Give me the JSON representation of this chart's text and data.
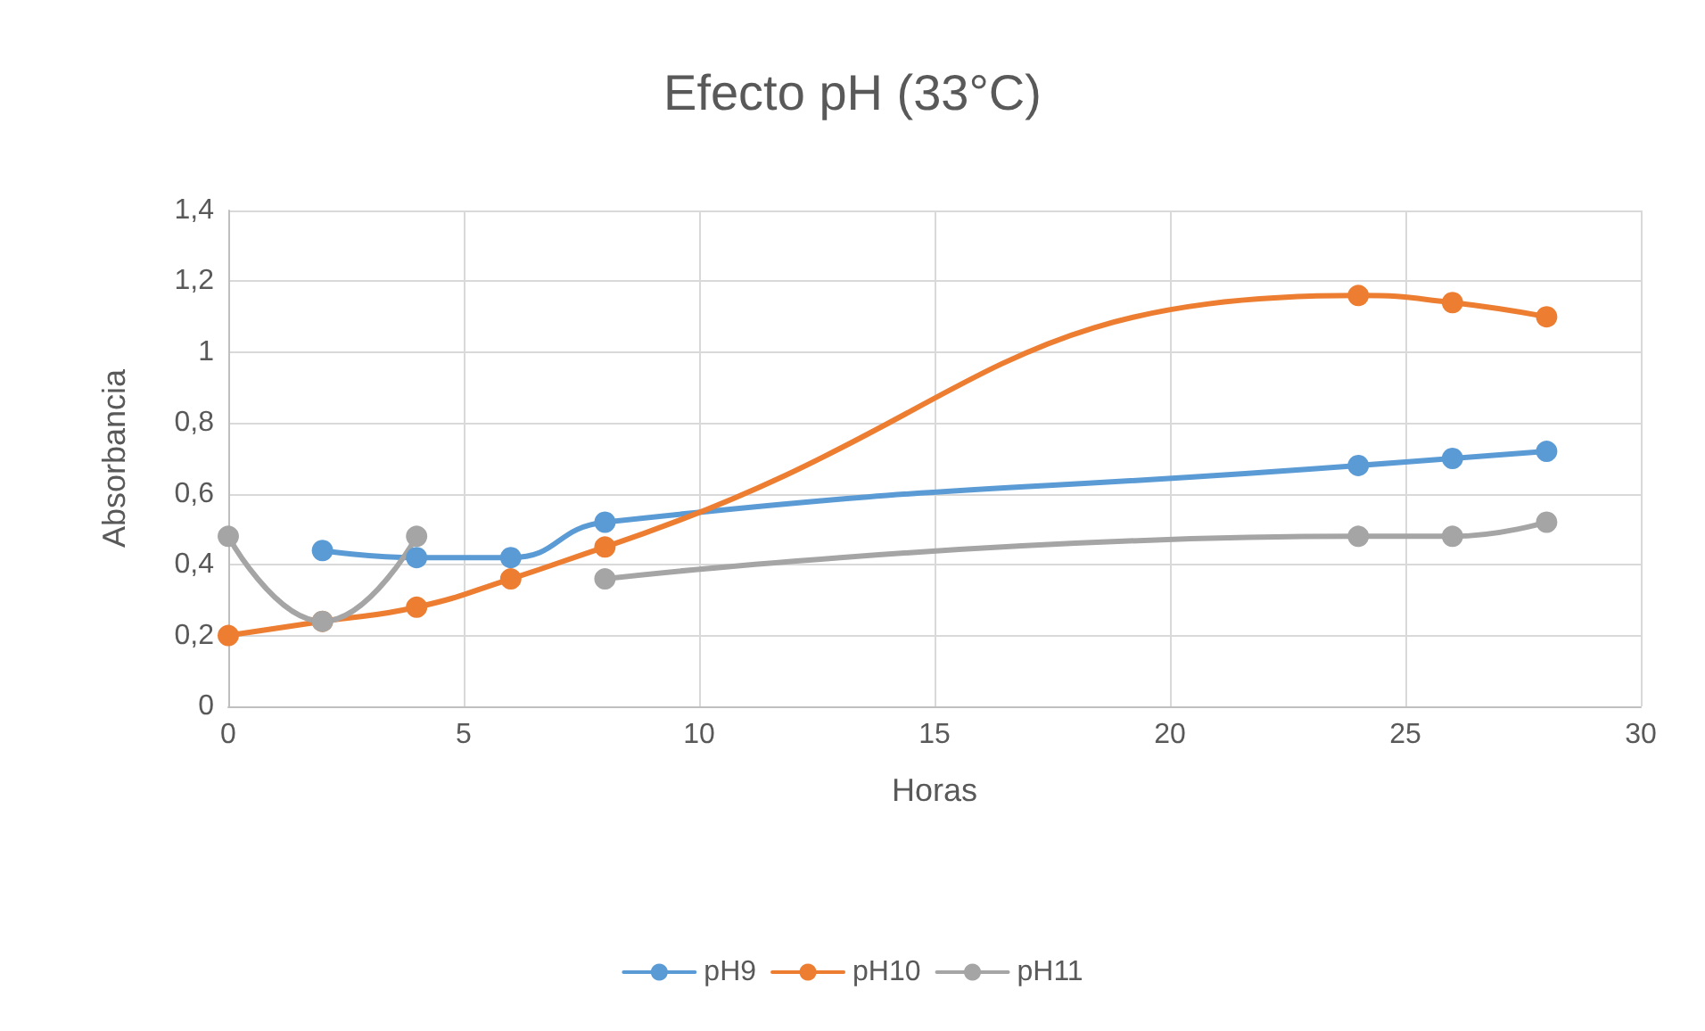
{
  "chart_data": {
    "type": "line",
    "title": "Efecto pH (33°C)",
    "xlabel": "Horas",
    "ylabel": "Absorbancia",
    "x": [
      0,
      2,
      4,
      6,
      8,
      24,
      26,
      28
    ],
    "series": [
      {
        "name": "pH9",
        "color": "#5b9bd5",
        "values": [
          null,
          0.44,
          0.42,
          0.42,
          0.52,
          0.68,
          0.7,
          0.72
        ]
      },
      {
        "name": "pH10",
        "color": "#ed7d31",
        "values": [
          0.2,
          0.24,
          0.28,
          0.36,
          0.45,
          1.16,
          1.14,
          1.1
        ]
      },
      {
        "name": "pH11",
        "color": "#a5a5a5",
        "values": [
          0.48,
          0.24,
          0.48,
          null,
          0.36,
          0.48,
          0.48,
          0.52
        ]
      }
    ],
    "xlim": [
      0,
      30
    ],
    "xticks": [
      0,
      5,
      10,
      15,
      20,
      25,
      30
    ],
    "ylim": [
      0,
      1.4
    ],
    "yticks": [
      0,
      {
        "value": 0.2,
        "label": "0,2"
      },
      {
        "value": 0.4,
        "label": "0,4"
      },
      {
        "value": 0.6,
        "label": "0,6"
      },
      {
        "value": 0.8,
        "label": "0,8"
      },
      1,
      {
        "value": 1.2,
        "label": "1,2"
      },
      {
        "value": 1.4,
        "label": "1,4"
      }
    ],
    "grid": true,
    "legend": "bottom",
    "marker": "circle",
    "line_style": "solid"
  }
}
